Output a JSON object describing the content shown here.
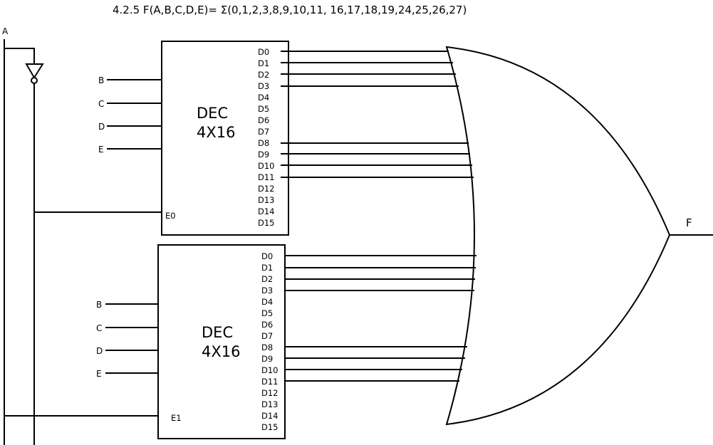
{
  "title": "4.2.5 F(A,B,C,D,E)= Σ(0,1,2,3,8,9,10,11, 16,17,18,19,24,25,26,27)",
  "input_a_label": "A",
  "output_label": "F",
  "decoders": [
    {
      "name_line1": "DEC",
      "name_line2": "4X16",
      "inputs": [
        "B",
        "C",
        "D",
        "E"
      ],
      "enable_label": "E0",
      "outputs": [
        "D0",
        "D1",
        "D2",
        "D3",
        "D4",
        "D5",
        "D6",
        "D7",
        "D8",
        "D9",
        "D10",
        "D11",
        "D12",
        "D13",
        "D14",
        "D15"
      ]
    },
    {
      "name_line1": "DEC",
      "name_line2": "4X16",
      "inputs": [
        "B",
        "C",
        "D",
        "E"
      ],
      "enable_label": "E1",
      "outputs": [
        "D0",
        "D1",
        "D2",
        "D3",
        "D4",
        "D5",
        "D6",
        "D7",
        "D8",
        "D9",
        "D10",
        "D11",
        "D12",
        "D13",
        "D14",
        "D15"
      ]
    }
  ]
}
